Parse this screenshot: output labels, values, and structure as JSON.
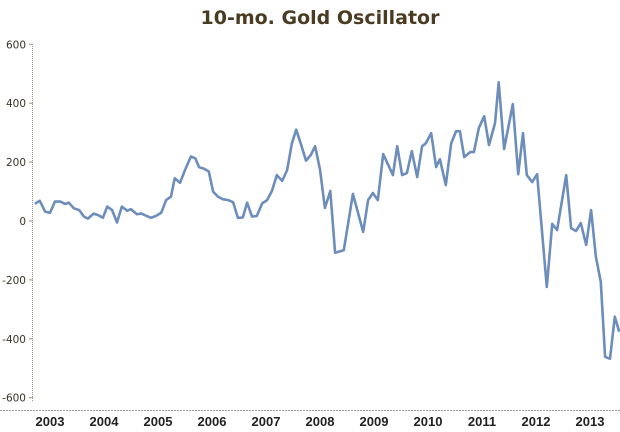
{
  "chart_data": {
    "type": "line",
    "title": "10-mo. Gold Oscillator",
    "xlabel": "",
    "ylabel": "",
    "ylim": [
      -600,
      600
    ],
    "xlim": [
      2003,
      2014
    ],
    "y_ticks": [
      "600",
      "400",
      "200",
      "0",
      "-200",
      "-400",
      "-600"
    ],
    "y_tick_values": [
      600,
      400,
      200,
      0,
      -200,
      -400,
      -600
    ],
    "x_ticks": [
      "2003",
      "2004",
      "2005",
      "2006",
      "2007",
      "2008",
      "2009",
      "2010",
      "2011",
      "2012",
      "2013"
    ],
    "grid": false,
    "line_color": "#6d8dbb",
    "series": [
      {
        "x": [
          2003.22,
          2003.31,
          2003.41,
          2003.5,
          2003.59,
          2003.69,
          2003.78,
          2003.85,
          2003.94,
          2004.04,
          2004.13,
          2004.2,
          2004.31,
          2004.39,
          2004.48,
          2004.56,
          2004.65,
          2004.74,
          2004.83,
          2004.93,
          2005.0,
          2005.11,
          2005.19,
          2005.28,
          2005.37,
          2005.46,
          2005.56,
          2005.65,
          2005.74,
          2005.81,
          2005.91,
          2006.0,
          2006.11,
          2006.19,
          2006.26,
          2006.35,
          2006.44,
          2006.52,
          2006.61,
          2006.7,
          2006.8,
          2006.89,
          2006.98,
          2007.07,
          2007.15,
          2007.24,
          2007.33,
          2007.43,
          2007.52,
          2007.61,
          2007.7,
          2007.8,
          2007.89,
          2007.98,
          2008.06,
          2008.15,
          2008.24,
          2008.33,
          2008.41,
          2008.5,
          2008.59,
          2008.69,
          2008.78,
          2008.94,
          2009.11,
          2009.3,
          2009.39,
          2009.48,
          2009.57,
          2009.67,
          2009.85,
          2009.93,
          2010.02,
          2010.11,
          2010.2,
          2010.3,
          2010.39,
          2010.46,
          2010.56,
          2010.65,
          2010.72,
          2010.83,
          2010.93,
          2011.02,
          2011.09,
          2011.17,
          2011.28,
          2011.35,
          2011.44,
          2011.54,
          2011.63,
          2011.74,
          2011.81,
          2011.91,
          2012.07,
          2012.17,
          2012.26,
          2012.33,
          2012.43,
          2012.52,
          2012.7,
          2012.8,
          2012.89,
          2013.06,
          2013.15,
          2013.24,
          2013.33,
          2013.43,
          2013.52,
          2013.61,
          2013.7,
          2013.78,
          2013.87,
          2013.96,
          2014.04
        ],
        "values": [
          58,
          69,
          32,
          28,
          66,
          66,
          58,
          62,
          43,
          37,
          15,
          8,
          25,
          20,
          11,
          49,
          37,
          -5,
          49,
          35,
          40,
          23,
          25,
          18,
          11,
          17,
          28,
          71,
          83,
          145,
          130,
          173,
          219,
          213,
          183,
          178,
          168,
          100,
          83,
          74,
          71,
          64,
          11,
          12,
          62,
          15,
          17,
          60,
          71,
          102,
          156,
          136,
          173,
          264,
          310,
          259,
          205,
          224,
          254,
          175,
          44,
          102,
          -108,
          -99,
          92,
          -37,
          71,
          95,
          71,
          227,
          156,
          254,
          156,
          163,
          237,
          149,
          254,
          264,
          298,
          183,
          210,
          122,
          264,
          305,
          305,
          217,
          234,
          234,
          315,
          356,
          258,
          332,
          471,
          244,
          397,
          159,
          298,
          156,
          132,
          159,
          -224,
          -10,
          -31,
          156,
          -24,
          -34,
          -7,
          -81,
          37,
          -122,
          -207,
          -461,
          -468,
          -325,
          -376
        ]
      }
    ]
  }
}
